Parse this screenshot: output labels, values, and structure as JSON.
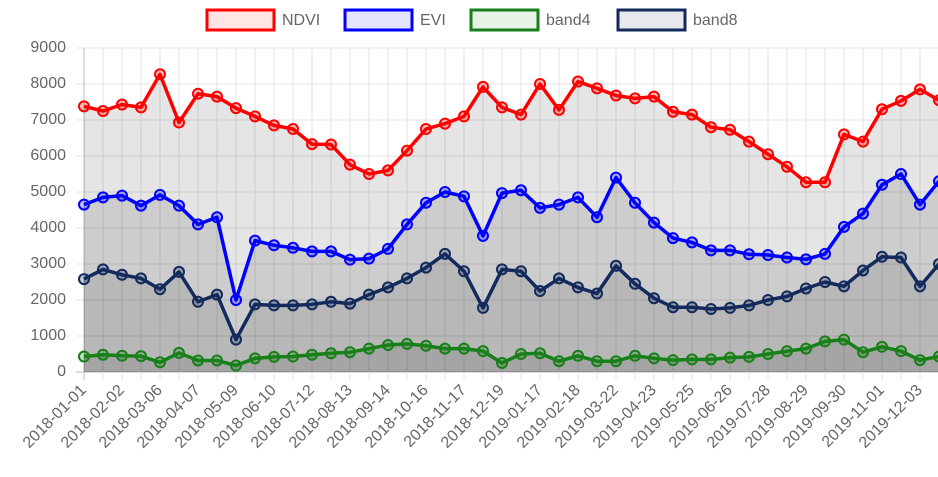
{
  "chart_data": {
    "type": "line",
    "legend": "top",
    "grid": true,
    "fill": true,
    "categories": [
      "2018-01-01",
      null,
      "2018-02-02",
      null,
      "2018-03-06",
      null,
      "2018-04-07",
      null,
      "2018-05-09",
      null,
      "2018-06-10",
      null,
      "2018-07-12",
      null,
      "2018-08-13",
      null,
      "2018-09-14",
      null,
      "2018-10-16",
      null,
      "2018-11-17",
      null,
      "2018-12-19",
      null,
      "2019-01-17",
      null,
      "2019-02-18",
      null,
      "2019-03-22",
      null,
      "2019-04-23",
      null,
      "2019-05-25",
      null,
      "2019-06-26",
      null,
      "2019-07-28",
      null,
      "2019-08-29",
      null,
      "2019-09-30",
      null,
      "2019-11-01",
      null,
      "2019-12-03",
      null
    ],
    "ylim": [
      0,
      9000
    ],
    "yticks": [
      0,
      1000,
      2000,
      3000,
      4000,
      5000,
      6000,
      7000,
      8000,
      9000
    ],
    "series": [
      {
        "name": "NDVI",
        "color": "#ff0000",
        "values": [
          7380,
          7250,
          7430,
          7350,
          8270,
          6930,
          7730,
          7650,
          7330,
          7100,
          6850,
          6750,
          6330,
          6320,
          5760,
          5500,
          5600,
          6150,
          6750,
          6900,
          7100,
          7920,
          7350,
          7150,
          8000,
          7280,
          8070,
          7880,
          7680,
          7600,
          7650,
          7230,
          7150,
          6800,
          6730,
          6400,
          6050,
          5700,
          5270,
          5270,
          6600,
          6400,
          7300,
          7530,
          7850,
          7550
        ]
      },
      {
        "name": "EVI",
        "color": "#0000ff",
        "values": [
          4650,
          4850,
          4900,
          4620,
          4920,
          4620,
          4100,
          4300,
          2000,
          3650,
          3520,
          3450,
          3350,
          3350,
          3120,
          3150,
          3420,
          4100,
          4700,
          5000,
          4880,
          3780,
          4970,
          5050,
          4560,
          4650,
          4850,
          4300,
          5400,
          4700,
          4150,
          3720,
          3600,
          3380,
          3380,
          3270,
          3250,
          3180,
          3130,
          3280,
          4030,
          4400,
          5200,
          5500,
          4650,
          5300
        ]
      },
      {
        "name": "band4",
        "color": "#188018",
        "values": [
          430,
          480,
          450,
          440,
          270,
          530,
          320,
          320,
          180,
          380,
          420,
          430,
          480,
          520,
          550,
          650,
          750,
          780,
          730,
          650,
          650,
          580,
          250,
          500,
          520,
          300,
          450,
          300,
          300,
          450,
          380,
          330,
          350,
          350,
          400,
          420,
          500,
          580,
          650,
          850,
          900,
          550,
          700,
          580,
          330,
          430
        ]
      },
      {
        "name": "band8",
        "color": "#132a5c",
        "values": [
          2580,
          2850,
          2700,
          2600,
          2300,
          2780,
          1950,
          2150,
          900,
          1880,
          1850,
          1850,
          1880,
          1950,
          1900,
          2150,
          2350,
          2600,
          2900,
          3280,
          2800,
          1780,
          2850,
          2800,
          2250,
          2600,
          2350,
          2180,
          2950,
          2450,
          2050,
          1800,
          1800,
          1750,
          1780,
          1850,
          2000,
          2100,
          2320,
          2500,
          2380,
          2820,
          3200,
          3180,
          2380,
          3000
        ]
      }
    ]
  }
}
